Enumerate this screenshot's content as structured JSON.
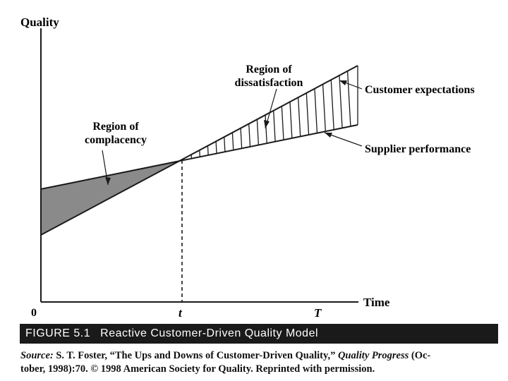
{
  "diagram": {
    "y_axis_label": "Quality",
    "x_axis_label": "Time",
    "origin_label": "0",
    "t_label": "t",
    "T_label": "T",
    "region_complacency": [
      "Region of",
      "complacency"
    ],
    "region_dissatisfaction": [
      "Region of",
      "dissatisfaction"
    ],
    "customer_expectations_label": "Customer expectations",
    "supplier_performance_label": "Supplier performance",
    "colors": {
      "ink": "#1a1a1a",
      "shade": "#8a8a8a"
    }
  },
  "caption": {
    "figure_number": "FIGURE 5.1",
    "title": "Reactive Customer-Driven Quality Model"
  },
  "source": {
    "lead": "Source:",
    "author": " S. T. Foster, “The Ups and Downs of Customer-Driven Quality,” ",
    "journal": "Quality Progress",
    "rest_line1": " (Oc-",
    "line2": "tober, 1998):70. © 1998 American Society for Quality. Reprinted with permission."
  }
}
